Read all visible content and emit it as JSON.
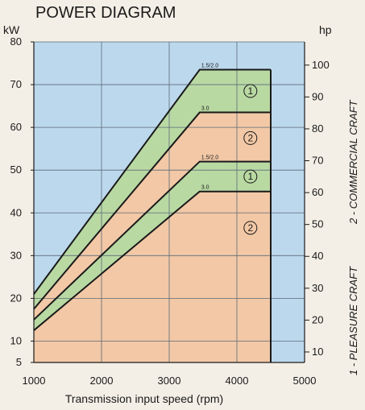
{
  "chart_data": {
    "type": "area",
    "title": "POWER DIAGRAM",
    "xlabel": "Transmission input speed (rpm)",
    "ylabel_left": "kW",
    "ylabel_right": "hp",
    "right_labels": [
      "2 - COMMERCIAL CRAFT",
      "1 - PLEASURE CRAFT"
    ],
    "xlim": [
      1000,
      5000
    ],
    "ylim": [
      5,
      80
    ],
    "x_ticks": [
      "1000",
      "2000",
      "3000",
      "4000",
      "5000"
    ],
    "y_ticks": [
      "5",
      "10",
      "20",
      "30",
      "40",
      "50",
      "60",
      "70",
      "80"
    ],
    "hp_ticks": [
      "10",
      "20",
      "30",
      "40",
      "50",
      "60",
      "70",
      "80",
      "90",
      "100"
    ],
    "hp_values": [
      10,
      20,
      30,
      40,
      50,
      60,
      70,
      80,
      90,
      100
    ],
    "x_max_line": 4500,
    "series": [
      {
        "name": "1.5/2.0",
        "x": [
          1000,
          3450,
          4500
        ],
        "y": [
          21,
          73.5,
          73.5
        ]
      },
      {
        "name": "3.0",
        "x": [
          1000,
          3450,
          4500
        ],
        "y": [
          17.5,
          63.5,
          63.5
        ]
      },
      {
        "name": "1.5/2.0",
        "x": [
          1000,
          3450,
          4500
        ],
        "y": [
          15,
          52,
          52
        ]
      },
      {
        "name": "3.0",
        "x": [
          1000,
          3450,
          4500
        ],
        "y": [
          12.5,
          45,
          45
        ]
      }
    ],
    "annotations": [
      {
        "text": "1",
        "x": 4200,
        "y": 68.5
      },
      {
        "text": "2",
        "x": 4200,
        "y": 57.5
      },
      {
        "text": "1",
        "x": 4200,
        "y": 48.5
      },
      {
        "text": "2",
        "x": 4200,
        "y": 36.5
      }
    ],
    "colors": {
      "background": "#bcd8ec",
      "pleasure": "#b9d9a3",
      "commercial": "#f2c8a6",
      "line": "#1a1a1a",
      "grid": "#5c6a78"
    }
  }
}
